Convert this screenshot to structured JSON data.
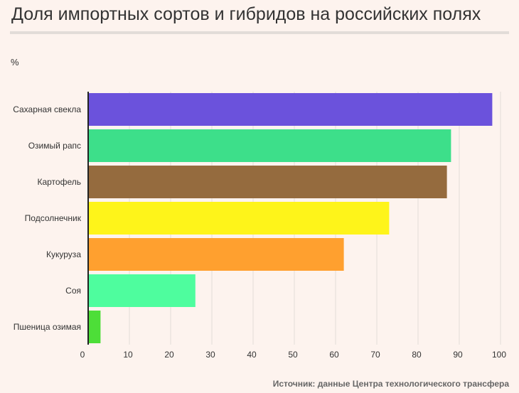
{
  "title": "Доля импортных сортов и гибридов на российских полях",
  "unit_label": "%",
  "source": "Источник: данные Центра технологического трансфера",
  "colors": {
    "background": "#fdf3ee",
    "grid": "#e2dcd8",
    "axis": "#222222",
    "text": "#333333"
  },
  "chart_data": {
    "type": "bar",
    "orientation": "horizontal",
    "categories": [
      "Сахарная свекла",
      "Озимый рапс",
      "Картофель",
      "Подсолнечник",
      "Кукуруза",
      "Соя",
      "Пшеница озимая"
    ],
    "values": [
      98,
      88,
      87,
      73,
      62,
      26,
      3
    ],
    "colors": [
      "#6b52dc",
      "#3ddf8a",
      "#956b3e",
      "#fef41a",
      "#ffa02f",
      "#4efd9e",
      "#4dde38"
    ],
    "x_ticks": [
      0,
      10,
      20,
      30,
      40,
      50,
      60,
      70,
      80,
      90,
      100
    ],
    "xlim": [
      0,
      100
    ],
    "ylabel": "%",
    "grid": true
  }
}
